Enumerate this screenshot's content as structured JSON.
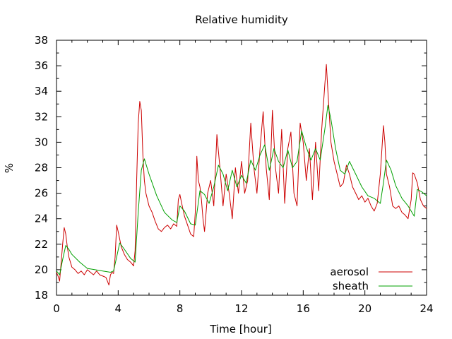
{
  "chart_data": {
    "type": "line",
    "title": "Relative humidity",
    "xlabel": "Time [hour]",
    "ylabel": "%",
    "xlim": [
      0,
      24
    ],
    "ylim": [
      18,
      38
    ],
    "xticks": [
      0,
      4,
      8,
      12,
      16,
      20,
      24
    ],
    "yticks": [
      18,
      20,
      22,
      24,
      26,
      28,
      30,
      32,
      34,
      36,
      38
    ],
    "grid": false,
    "legend_position": "bottom-right",
    "colors": {
      "aerosol": "#cc0000",
      "sheath": "#00a000"
    },
    "series": [
      {
        "name": "aerosol",
        "color": "#cc0000",
        "x": [
          0,
          0.1,
          0.2,
          0.3,
          0.4,
          0.5,
          0.6,
          0.7,
          0.8,
          1.0,
          1.2,
          1.4,
          1.6,
          1.8,
          2.0,
          2.2,
          2.4,
          2.6,
          2.8,
          3.0,
          3.2,
          3.3,
          3.4,
          3.5,
          3.6,
          3.7,
          3.8,
          3.9,
          4.0,
          4.1,
          4.2,
          4.4,
          4.6,
          4.8,
          5.0,
          5.1,
          5.2,
          5.3,
          5.4,
          5.5,
          5.6,
          5.7,
          5.8,
          6.0,
          6.2,
          6.4,
          6.6,
          6.8,
          7.0,
          7.2,
          7.4,
          7.6,
          7.8,
          7.9,
          8.0,
          8.1,
          8.3,
          8.5,
          8.7,
          8.9,
          9.0,
          9.1,
          9.2,
          9.3,
          9.4,
          9.5,
          9.6,
          9.8,
          10.0,
          10.2,
          10.4,
          10.6,
          10.8,
          11.0,
          11.2,
          11.4,
          11.6,
          11.8,
          12.0,
          12.2,
          12.4,
          12.6,
          12.8,
          13.0,
          13.2,
          13.4,
          13.6,
          13.8,
          14.0,
          14.2,
          14.4,
          14.6,
          14.8,
          15.0,
          15.2,
          15.4,
          15.6,
          15.8,
          16.0,
          16.2,
          16.4,
          16.6,
          16.8,
          17.0,
          17.2,
          17.4,
          17.5,
          17.6,
          17.8,
          18.0,
          18.2,
          18.4,
          18.6,
          18.8,
          19.0,
          19.2,
          19.4,
          19.6,
          19.8,
          20.0,
          20.2,
          20.4,
          20.6,
          20.8,
          21.0,
          21.2,
          21.3,
          21.4,
          21.6,
          21.8,
          22.0,
          22.2,
          22.4,
          22.6,
          22.8,
          23.0,
          23.1,
          23.2,
          23.4,
          23.6,
          23.8,
          24.0
        ],
        "y": [
          19.8,
          19.5,
          19.1,
          20.5,
          22.0,
          23.3,
          22.8,
          21.8,
          21.0,
          20.2,
          20.0,
          19.7,
          19.9,
          19.6,
          20.0,
          19.8,
          19.6,
          19.9,
          19.6,
          19.5,
          19.4,
          19.1,
          18.8,
          19.6,
          19.8,
          19.7,
          21.0,
          23.5,
          23.0,
          22.4,
          21.8,
          21.2,
          20.8,
          20.6,
          20.3,
          21.5,
          27.0,
          31.5,
          33.2,
          32.5,
          29.0,
          27.0,
          26.0,
          25.0,
          24.5,
          23.8,
          23.2,
          23.0,
          23.3,
          23.5,
          23.2,
          23.6,
          23.4,
          25.5,
          25.9,
          25.3,
          24.2,
          23.5,
          22.8,
          22.6,
          24.5,
          28.9,
          27.0,
          26.5,
          25.5,
          24.0,
          23.0,
          26.0,
          27.0,
          25.0,
          30.6,
          28.0,
          25.0,
          27.5,
          26.0,
          24.0,
          28.0,
          26.0,
          28.5,
          26.0,
          27.0,
          31.5,
          28.0,
          26.0,
          29.5,
          32.4,
          28.0,
          25.5,
          32.5,
          28.0,
          26.0,
          31.0,
          25.2,
          29.5,
          30.8,
          26.0,
          25.0,
          31.5,
          30.0,
          27.0,
          29.5,
          25.5,
          30.0,
          26.2,
          31.0,
          34.5,
          36.1,
          34.0,
          30.0,
          28.5,
          27.5,
          26.5,
          26.8,
          28.2,
          27.5,
          26.5,
          26.0,
          25.5,
          25.8,
          25.3,
          25.6,
          25.0,
          24.6,
          25.2,
          27.5,
          31.3,
          30.0,
          27.5,
          26.5,
          25.0,
          24.8,
          25.0,
          24.5,
          24.3,
          24.0,
          25.5,
          27.6,
          27.5,
          26.8,
          25.5,
          25.0,
          24.8
        ]
      },
      {
        "name": "sheath",
        "color": "#00a000",
        "x": [
          0,
          0.2,
          0.4,
          0.6,
          0.8,
          1.0,
          1.5,
          2.0,
          2.5,
          3.0,
          3.5,
          3.7,
          3.9,
          4.1,
          4.4,
          4.8,
          5.1,
          5.3,
          5.5,
          5.7,
          6.0,
          6.5,
          7.0,
          7.5,
          7.8,
          8.0,
          8.3,
          8.7,
          9.0,
          9.3,
          9.6,
          9.9,
          10.2,
          10.5,
          10.8,
          11.1,
          11.4,
          11.7,
          12.0,
          12.3,
          12.6,
          12.9,
          13.2,
          13.5,
          13.8,
          14.1,
          14.4,
          14.7,
          15.0,
          15.3,
          15.6,
          15.9,
          16.2,
          16.5,
          16.8,
          17.1,
          17.4,
          17.6,
          17.8,
          18.1,
          18.4,
          18.7,
          19.0,
          19.4,
          19.8,
          20.2,
          20.6,
          21.0,
          21.2,
          21.4,
          21.7,
          22.0,
          22.4,
          22.8,
          23.0,
          23.2,
          23.4,
          23.7,
          24.0
        ],
        "y": [
          19.9,
          19.6,
          20.8,
          21.9,
          21.6,
          21.2,
          20.6,
          20.1,
          20.0,
          19.9,
          19.8,
          19.9,
          21.0,
          22.1,
          21.6,
          20.9,
          20.6,
          24.5,
          27.8,
          28.7,
          27.5,
          25.8,
          24.5,
          23.9,
          23.7,
          25.0,
          24.6,
          23.6,
          23.5,
          26.2,
          25.9,
          25.2,
          26.5,
          28.2,
          27.5,
          26.2,
          27.8,
          26.5,
          27.4,
          26.8,
          28.6,
          27.8,
          29.0,
          29.8,
          27.8,
          29.5,
          28.5,
          28.0,
          29.4,
          28.0,
          28.5,
          30.9,
          29.6,
          28.6,
          29.5,
          28.6,
          31.0,
          32.9,
          31.8,
          29.5,
          27.8,
          27.5,
          28.5,
          27.5,
          26.5,
          25.8,
          25.6,
          25.2,
          26.8,
          28.6,
          27.8,
          26.6,
          25.6,
          25.0,
          24.6,
          24.2,
          26.3,
          26.1,
          25.8
        ]
      }
    ]
  }
}
